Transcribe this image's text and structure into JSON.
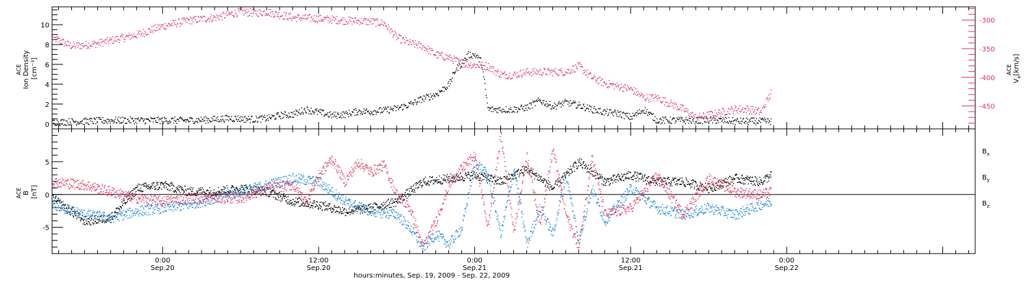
{
  "colors": {
    "density": "#000000",
    "velocity": "#e0305e",
    "bx": "#000000",
    "by": "#1a86d8",
    "bz": "#e0305e"
  },
  "time_axis": {
    "label": "hours:minutes, Sep. 19, 2009 - Sep. 22, 2009",
    "range_hours": [
      -8.5,
      62.5
    ],
    "ticks": [
      {
        "hours": 0,
        "line1": "0:00",
        "line2": "Sep.20"
      },
      {
        "hours": 12,
        "line1": "12:00",
        "line2": "Sep.20"
      },
      {
        "hours": 24,
        "line1": "0:00",
        "line2": "Sep.21"
      },
      {
        "hours": 36,
        "line1": "12:00",
        "line2": "Sep.21"
      },
      {
        "hours": 48,
        "line1": "0:00",
        "line2": "Sep.22"
      }
    ]
  },
  "chart_data": [
    {
      "type": "scatter",
      "panel": "plasma",
      "left_axis": {
        "label_lines": [
          "ACE",
          "Ion Density",
          "[cm⁻³]"
        ],
        "ylim": [
          -0.5,
          11.8
        ],
        "ticks": [
          0,
          2,
          4,
          6,
          8,
          10
        ]
      },
      "right_axis": {
        "label_lines": [
          "ACE",
          "V",
          "[km/s]"
        ],
        "ylim": [
          -490,
          -277
        ],
        "ticks": [
          -300,
          -350,
          -400,
          -450
        ]
      },
      "series": [
        {
          "axis": "left",
          "x": [
            -8.5,
            -6,
            -4,
            -2,
            0,
            2,
            4,
            5,
            7,
            8,
            9,
            10,
            11,
            12,
            13,
            14,
            15,
            16,
            17,
            18,
            19,
            20,
            21,
            22,
            22.5,
            23,
            23.5,
            24,
            24.5,
            25,
            26,
            27,
            28,
            29,
            30,
            31,
            32,
            33,
            34,
            35,
            36,
            37,
            38,
            39,
            40,
            41,
            42,
            43,
            44,
            45,
            46.8
          ],
          "y": [
            0.2,
            0.3,
            0.4,
            0.4,
            0.4,
            0.4,
            0.5,
            0.6,
            0.5,
            0.6,
            0.9,
            1.0,
            1.5,
            1.2,
            0.9,
            1.0,
            1.3,
            1.3,
            1.4,
            1.6,
            2.0,
            2.6,
            3.0,
            4.0,
            5.5,
            6.2,
            7.0,
            7.0,
            6.3,
            1.5,
            1.5,
            1.5,
            1.7,
            2.4,
            1.8,
            2.2,
            1.9,
            1.5,
            1.2,
            1.1,
            0.7,
            1.5,
            0.4,
            0.4,
            0.4,
            0.4,
            0.4,
            0.4,
            0.3,
            0.3,
            0.3
          ]
        },
        {
          "axis": "right",
          "x": [
            -8.5,
            -7,
            -5,
            -4,
            -3,
            -2,
            0,
            2,
            4,
            6,
            7,
            8,
            9,
            10,
            12,
            14,
            16,
            17,
            18,
            19,
            20,
            21,
            22,
            23,
            24,
            25,
            26,
            27,
            28,
            29,
            30,
            31,
            32,
            33,
            34,
            35,
            36,
            37,
            38,
            39,
            40,
            41,
            42,
            43,
            44,
            45,
            46,
            46.8
          ],
          "y": [
            -330,
            -345,
            -340,
            -335,
            -330,
            -325,
            -310,
            -300,
            -295,
            -285,
            -287,
            -285,
            -290,
            -295,
            -297,
            -300,
            -302,
            -305,
            -330,
            -340,
            -345,
            -360,
            -365,
            -375,
            -378,
            -380,
            -395,
            -395,
            -390,
            -390,
            -390,
            -390,
            -380,
            -400,
            -410,
            -415,
            -420,
            -435,
            -435,
            -445,
            -455,
            -470,
            -465,
            -460,
            -455,
            -455,
            -460,
            -425
          ]
        }
      ]
    },
    {
      "type": "scatter",
      "panel": "magnetic-field",
      "axis": {
        "label_lines": [
          "ACE",
          "B",
          "[nT]"
        ],
        "ylim": [
          -9,
          10
        ],
        "ticks": [
          -5,
          0,
          5
        ]
      },
      "legend": [
        "Bx",
        "By",
        "Bz"
      ],
      "series": [
        {
          "name": "Bx",
          "x": [
            -8.5,
            -6,
            -4,
            -2,
            0,
            2,
            4,
            6,
            8,
            10,
            12,
            14,
            16,
            18,
            20,
            22,
            24,
            26,
            28,
            30,
            32,
            34,
            36,
            38,
            40,
            42,
            44,
            46,
            46.8
          ],
          "y": [
            -0.5,
            -4.0,
            -3.5,
            1.0,
            1.5,
            0.5,
            0.5,
            1.0,
            0.5,
            -1.0,
            -1.5,
            -2.5,
            -2.0,
            -1.0,
            2.0,
            2.5,
            3.0,
            2.0,
            4.0,
            1.0,
            5.0,
            2.0,
            3.0,
            2.0,
            2.0,
            1.0,
            2.5,
            2.0,
            3.0
          ]
        },
        {
          "name": "By",
          "x": [
            -8.5,
            -6,
            -4,
            -2,
            0,
            2,
            4,
            6,
            8,
            10,
            12,
            14,
            16,
            18,
            19,
            20,
            21,
            22,
            23,
            24,
            25,
            26,
            27,
            28,
            29,
            30,
            31,
            32,
            33,
            34,
            36,
            38,
            40,
            42,
            44,
            46,
            46.8
          ],
          "y": [
            -1.5,
            -3.0,
            -3.5,
            -2.5,
            -2.0,
            -1.5,
            -0.5,
            0.5,
            1.5,
            2.5,
            2.0,
            -1.0,
            -2.5,
            -3.0,
            -5.0,
            -8.0,
            -6.0,
            -7.5,
            -5.0,
            5.0,
            3.0,
            -6.0,
            4.0,
            -7.5,
            -2.0,
            -6.0,
            3.0,
            -7.0,
            1.0,
            -4.0,
            1.0,
            -2.0,
            -3.0,
            -2.0,
            -3.0,
            -1.5,
            -1.0
          ]
        },
        {
          "name": "Bz",
          "x": [
            -8.5,
            -6,
            -4,
            -2,
            0,
            2,
            4,
            6,
            8,
            10,
            11,
            12,
            13,
            14,
            15,
            16,
            17,
            18,
            19,
            20,
            21,
            22,
            23,
            24,
            25,
            26,
            27,
            28,
            29,
            30,
            31,
            32,
            33,
            34,
            36,
            38,
            40,
            42,
            44,
            46,
            46.8
          ],
          "y": [
            2.0,
            1.5,
            0.5,
            -0.5,
            -1.0,
            -0.5,
            -0.5,
            -0.5,
            1.0,
            1.5,
            -1.0,
            3.0,
            5.5,
            2.0,
            5.0,
            3.5,
            4.5,
            0.0,
            -2.0,
            -8.0,
            -4.0,
            1.5,
            4.0,
            6.0,
            -5.0,
            9.0,
            -5.5,
            6.0,
            -4.5,
            7.0,
            -3.0,
            -8.0,
            6.0,
            -3.0,
            -2.0,
            3.0,
            -3.0,
            2.5,
            0.5,
            0.0,
            0.5
          ]
        }
      ]
    }
  ]
}
